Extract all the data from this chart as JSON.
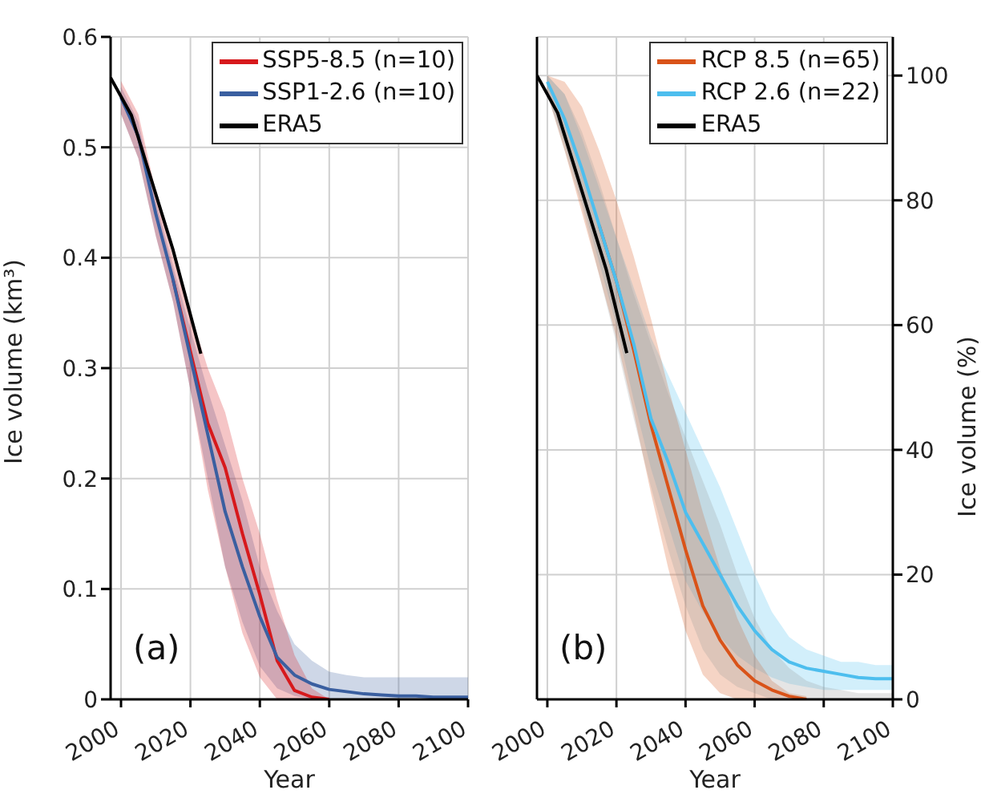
{
  "chart_data": [
    {
      "type": "line",
      "xlabel": "Year",
      "ylabel": "Ice volume (km³)",
      "xlim": [
        1997,
        2100
      ],
      "xticks": [
        2000,
        2020,
        2040,
        2060,
        2080,
        2100
      ],
      "ylim": [
        0,
        0.6
      ],
      "yticks": [
        0,
        0.1,
        0.2,
        0.3,
        0.4,
        0.5,
        0.6
      ],
      "grid": true,
      "legend": "top right",
      "annotations": [
        "(a)"
      ],
      "x": [
        2000,
        2005,
        2010,
        2015,
        2020,
        2025,
        2030,
        2035,
        2040,
        2045,
        2050,
        2055,
        2060,
        2065,
        2070,
        2075,
        2080,
        2085,
        2090,
        2095,
        2100
      ],
      "series": [
        {
          "name": "SSP5-8.5 (n=10)",
          "color": "#d7191c",
          "values": [
            null,
            null,
            null,
            0.38,
            0.315,
            0.25,
            0.21,
            0.15,
            0.095,
            0.035,
            0.008,
            0.002,
            0,
            null,
            null,
            null,
            null,
            null,
            null,
            null,
            null
          ],
          "lower": [
            0.53,
            0.49,
            0.42,
            0.36,
            0.28,
            0.19,
            0.12,
            0.06,
            0.02,
            0,
            0,
            0,
            0,
            0,
            0,
            0,
            0,
            0,
            0,
            0,
            0
          ],
          "upper": [
            0.56,
            0.53,
            0.46,
            0.4,
            0.35,
            0.3,
            0.26,
            0.2,
            0.15,
            0.09,
            0.04,
            0.01,
            0,
            0,
            0,
            0,
            0,
            0,
            0,
            0,
            0
          ]
        },
        {
          "name": "SSP1-2.6 (n=10)",
          "color": "#3a5fa0",
          "values": [
            0.545,
            0.51,
            0.44,
            0.38,
            0.31,
            0.24,
            0.17,
            0.12,
            0.075,
            0.038,
            0.022,
            0.014,
            0.009,
            0.007,
            0.005,
            0.004,
            0.003,
            0.003,
            0.002,
            0.002,
            0.002
          ],
          "lower": [
            0.53,
            0.49,
            0.42,
            0.36,
            0.28,
            0.2,
            0.12,
            0.07,
            0.03,
            0.01,
            0.003,
            0,
            0,
            0,
            0,
            0,
            0,
            0,
            0,
            0,
            0
          ],
          "upper": [
            0.555,
            0.523,
            0.452,
            0.392,
            0.335,
            0.28,
            0.23,
            0.18,
            0.12,
            0.08,
            0.05,
            0.035,
            0.025,
            0.022,
            0.02,
            0.02,
            0.02,
            0.02,
            0.02,
            0.02,
            0.02
          ]
        },
        {
          "name": "ERA5",
          "color": "#000000",
          "x": [
            1997,
            2003,
            2015,
            2023
          ],
          "values": [
            0.563,
            0.529,
            0.407,
            0.313
          ]
        }
      ]
    },
    {
      "type": "line",
      "xlabel": "Year",
      "y2label": "Ice volume (%)",
      "xlim": [
        1997,
        2100
      ],
      "xticks": [
        2000,
        2020,
        2040,
        2060,
        2080,
        2100
      ],
      "y2lim": [
        0,
        106.2
      ],
      "y2ticks": [
        0,
        20,
        40,
        60,
        80,
        100
      ],
      "grid": true,
      "legend": "top right",
      "annotations": [
        "(b)"
      ],
      "x": [
        2000,
        2005,
        2010,
        2015,
        2020,
        2025,
        2030,
        2035,
        2040,
        2045,
        2050,
        2055,
        2060,
        2065,
        2070,
        2075,
        2080,
        2085,
        2090,
        2095,
        2100
      ],
      "series": [
        {
          "color": "#999999",
          "axis": "y2",
          "values": [
            null,
            null,
            null,
            null,
            null,
            null,
            null,
            null,
            null,
            null,
            null,
            null,
            null,
            null,
            null,
            null,
            null,
            null,
            null,
            null,
            null
          ],
          "lower": [
            97,
            88,
            79,
            68,
            57,
            45,
            34,
            24,
            15,
            8,
            4,
            2,
            1,
            0,
            0,
            0,
            0,
            0,
            0,
            0,
            0
          ],
          "upper": [
            100,
            97,
            91,
            83,
            74,
            65,
            57,
            49,
            42,
            35,
            28,
            20,
            13,
            8,
            5,
            3,
            2,
            1.5,
            1,
            1,
            1
          ]
        },
        {
          "name": "RCP 8.5 (n=65)",
          "color": "#d95319",
          "axis": "y2",
          "values": [
            null,
            null,
            null,
            76,
            67,
            56,
            44,
            34,
            24,
            15,
            9.5,
            5.5,
            3,
            1.5,
            0.5,
            0,
            null,
            null,
            null,
            null,
            null
          ],
          "lower": [
            97,
            88,
            78,
            68,
            58,
            46,
            33,
            21,
            11,
            4,
            1,
            0,
            0,
            0,
            0,
            0,
            null,
            null,
            null,
            null,
            null
          ],
          "upper": [
            100,
            99,
            95,
            88,
            80,
            71,
            61,
            50,
            40,
            30,
            21,
            13,
            7,
            3,
            1,
            0.5,
            null,
            null,
            null,
            null,
            null
          ]
        },
        {
          "name": "RCP 2.6 (n=22)",
          "color": "#4dbeee",
          "axis": "y2",
          "values": [
            99,
            93,
            85,
            76,
            67,
            57,
            45,
            38,
            30,
            25,
            20,
            15,
            11,
            8,
            6,
            5,
            4.5,
            4,
            3.5,
            3.3,
            3.3
          ],
          "lower": [
            97,
            89,
            80,
            70,
            60,
            48,
            37,
            28,
            19,
            14,
            10,
            7,
            5,
            3.5,
            2.5,
            2,
            1.5,
            1.5,
            1.5,
            1.5,
            1.5
          ],
          "upper": [
            100,
            97,
            90,
            82,
            74,
            66,
            58,
            52,
            46,
            40,
            34,
            27,
            20,
            14,
            10,
            8,
            7,
            6,
            6,
            5.5,
            5.5
          ]
        },
        {
          "name": "ERA5",
          "color": "#000000",
          "axis": "y2",
          "x": [
            1997,
            2003,
            2017,
            2023
          ],
          "values": [
            100,
            94,
            69,
            55.5
          ]
        }
      ]
    }
  ]
}
